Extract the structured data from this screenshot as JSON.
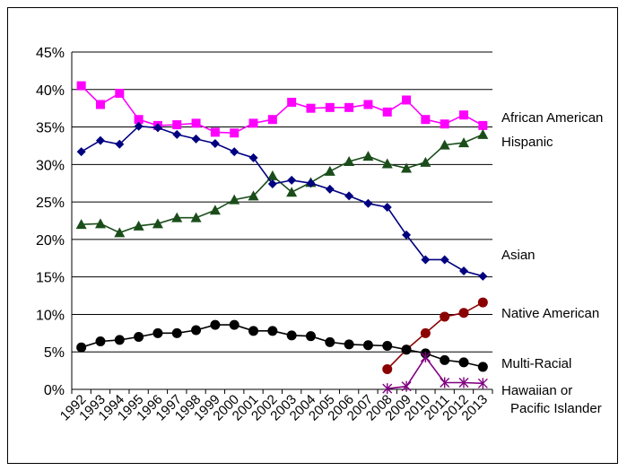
{
  "chart_data": {
    "type": "line",
    "categories": [
      "1992",
      "1993",
      "1994",
      "1995",
      "1996",
      "1997",
      "1998",
      "1999",
      "2000",
      "2001",
      "2002",
      "2003",
      "2004",
      "2005",
      "2006",
      "2007",
      "2008",
      "2009",
      "2010",
      "2011",
      "2012",
      "2013"
    ],
    "ylim": [
      0,
      45
    ],
    "yticks": [
      "0%",
      "5%",
      "10%",
      "15%",
      "20%",
      "25%",
      "30%",
      "35%",
      "40%",
      "45%"
    ],
    "grid": true,
    "legend_placement": "right, beside line ends",
    "series": [
      {
        "name": "African American",
        "color": "#ff00ff",
        "marker": "square",
        "values": [
          40.5,
          38,
          39.5,
          36,
          35.2,
          35.3,
          35.5,
          34.3,
          34.2,
          35.5,
          36,
          38.3,
          37.5,
          37.6,
          37.6,
          38,
          37,
          38.6,
          36,
          35.4,
          36.6,
          35.2
        ]
      },
      {
        "name": "Hispanic",
        "color": "#1a4d1a",
        "marker": "triangle",
        "values": [
          22,
          22.1,
          20.9,
          21.8,
          22.1,
          22.9,
          22.9,
          23.9,
          25.3,
          25.8,
          28.5,
          26.3,
          27.6,
          29.1,
          30.4,
          31.1,
          30.1,
          29.5,
          30.3,
          32.6,
          32.9,
          34
        ]
      },
      {
        "name": "Asian",
        "color": "#000080",
        "marker": "diamond",
        "values": [
          31.7,
          33.2,
          32.7,
          35.1,
          34.9,
          34,
          33.4,
          32.8,
          31.7,
          30.9,
          27.4,
          27.9,
          27.5,
          26.7,
          25.8,
          24.8,
          24.3,
          20.6,
          17.3,
          17.3,
          15.8,
          15.1
        ]
      },
      {
        "name": "Native American",
        "color": "#8b0000",
        "marker": "circle",
        "values": [
          null,
          null,
          null,
          null,
          null,
          null,
          null,
          null,
          null,
          null,
          null,
          null,
          null,
          null,
          null,
          null,
          2.7,
          5.3,
          7.5,
          9.7,
          10.2,
          11.6
        ]
      },
      {
        "name": "Multi-Racial",
        "color": "#000000",
        "marker": "circle",
        "values": [
          5.6,
          6.4,
          6.6,
          7.0,
          7.5,
          7.5,
          7.9,
          8.6,
          8.6,
          7.8,
          7.8,
          7.2,
          7.1,
          6.3,
          6.0,
          5.9,
          5.8,
          5.3,
          4.8,
          3.9,
          3.6,
          3.0
        ]
      },
      {
        "name": "Hawaiian or Pacific Islander",
        "color": "#800080",
        "marker": "star",
        "values": [
          null,
          null,
          null,
          null,
          null,
          null,
          null,
          null,
          null,
          null,
          null,
          null,
          null,
          null,
          null,
          null,
          0.1,
          0.4,
          4.3,
          0.9,
          0.9,
          0.8
        ]
      }
    ],
    "legend_lines": {
      "African American": [
        "African American"
      ],
      "Hispanic": [
        "Hispanic"
      ],
      "Asian": [
        "Asian"
      ],
      "Native American": [
        "Native American"
      ],
      "Multi-Racial": [
        "Multi-Racial"
      ],
      "Hawaiian or Pacific Islander": [
        "Hawaiian or",
        "Pacific Islander"
      ]
    }
  }
}
